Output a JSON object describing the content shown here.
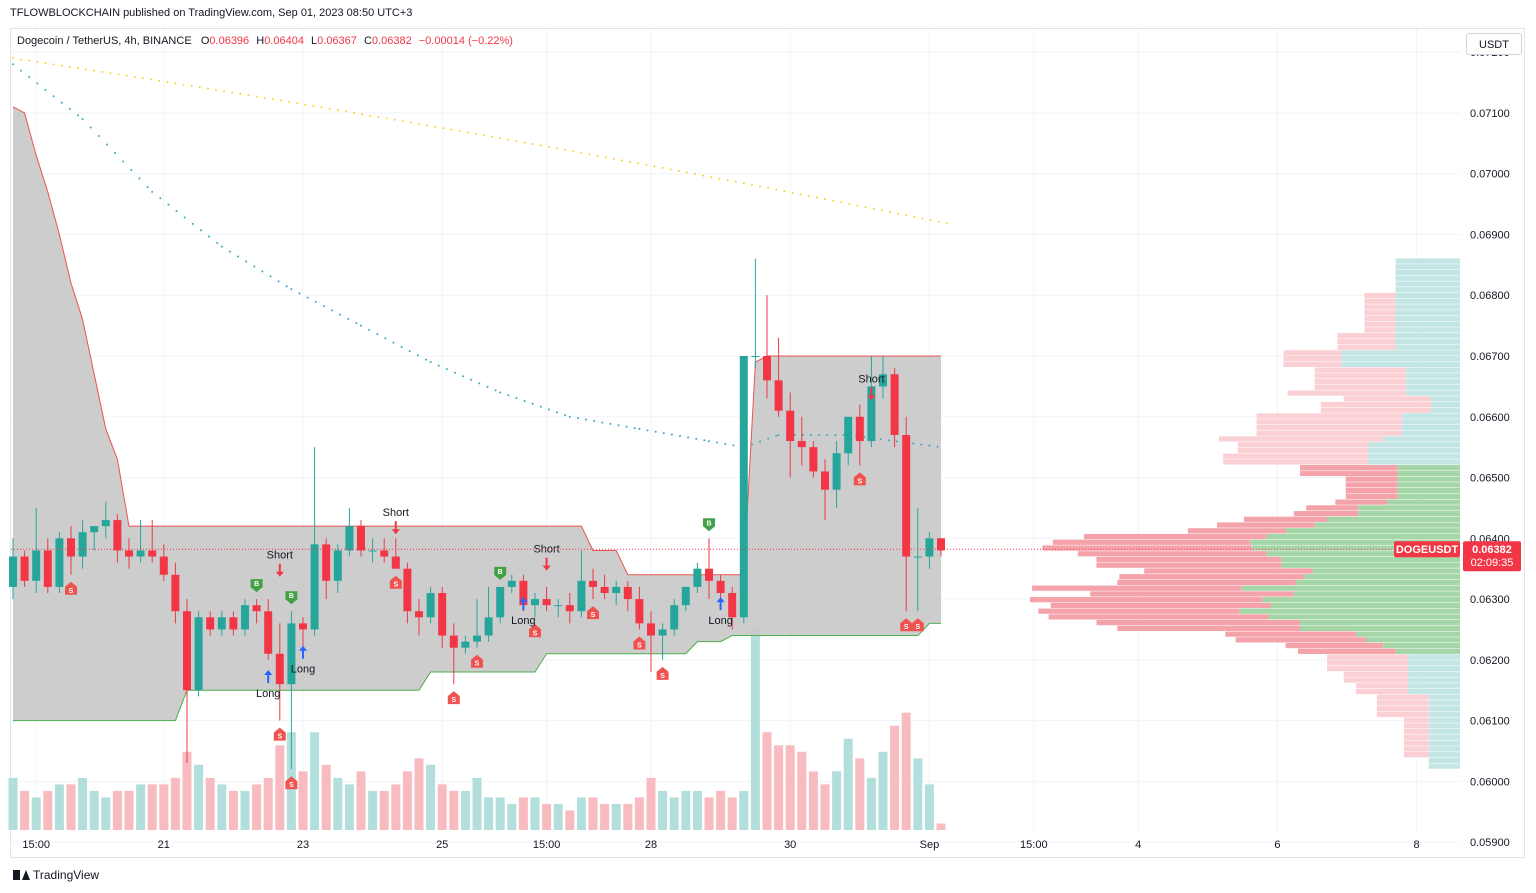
{
  "header": {
    "published": "TFLOWBLOCKCHAIN published on TradingView.com, Sep 01, 2023 08:50 UTC+3"
  },
  "legend": {
    "symbol": "Dogecoin / TetherUS, 4h, BINANCE",
    "open_label": "O",
    "open": "0.06396",
    "high_label": "H",
    "high": "0.06404",
    "low_label": "L",
    "low": "0.06367",
    "close_label": "C",
    "close": "0.06382",
    "change": "−0.00014 (−0.22%)"
  },
  "currency_button": "USDT",
  "brand": "TradingView",
  "colors": {
    "up": "#26a69a",
    "down": "#f23645",
    "band_fill": "#c8c8c8",
    "band_upper": "#ef5350",
    "band_lower": "#4caf50",
    "ema_slow": "#f5d327",
    "ema_fast": "#3aa8c0",
    "vol_up": "#b2dfdb",
    "vol_down": "#f8bbc0",
    "vp_up": "#a5d6a7",
    "vp_down": "#f4a3aa",
    "vp_up_light": "#c3e6e4",
    "vp_down_light": "#fbd0d4"
  },
  "chart_data": {
    "type": "candlestick",
    "symbol": "DOGEUSDT",
    "timeframe": "4h",
    "ylim": [
      0.0592,
      0.0722
    ],
    "y_ticks": [
      "0.07200",
      "0.07100",
      "0.07000",
      "0.06900",
      "0.06800",
      "0.06700",
      "0.06600",
      "0.06500",
      "0.06400",
      "0.06300",
      "0.06200",
      "0.06100",
      "0.06000",
      "0.05900"
    ],
    "x_ticks": [
      {
        "label": "15:00",
        "i": 2
      },
      {
        "label": "21",
        "i": 13
      },
      {
        "label": "23",
        "i": 25
      },
      {
        "label": "25",
        "i": 37
      },
      {
        "label": "15:00",
        "i": 46
      },
      {
        "label": "28",
        "i": 55
      },
      {
        "label": "30",
        "i": 67
      },
      {
        "label": "Sep",
        "i": 79
      },
      {
        "label": "15:00",
        "i": 88
      },
      {
        "label": "4",
        "i": 97
      },
      {
        "label": "6",
        "i": 109
      },
      {
        "label": "8",
        "i": 121
      }
    ],
    "last_price": "0.06382",
    "last_price_label": "DOGEUSDT",
    "countdown": "02:09:35",
    "candles": [
      [
        0.0632,
        0.064,
        0.063,
        0.0637
      ],
      [
        0.0637,
        0.0638,
        0.0632,
        0.0633
      ],
      [
        0.0633,
        0.0645,
        0.0631,
        0.0638
      ],
      [
        0.0638,
        0.064,
        0.0631,
        0.0632
      ],
      [
        0.0632,
        0.0641,
        0.0631,
        0.064
      ],
      [
        0.064,
        0.0642,
        0.0634,
        0.0637
      ],
      [
        0.0637,
        0.0643,
        0.0635,
        0.0641
      ],
      [
        0.0641,
        0.0642,
        0.0638,
        0.0642
      ],
      [
        0.0642,
        0.0646,
        0.064,
        0.0643
      ],
      [
        0.0643,
        0.0644,
        0.0636,
        0.0638
      ],
      [
        0.0638,
        0.064,
        0.0635,
        0.0637
      ],
      [
        0.0637,
        0.0643,
        0.0636,
        0.0638
      ],
      [
        0.0638,
        0.0643,
        0.0636,
        0.0637
      ],
      [
        0.0637,
        0.0639,
        0.0633,
        0.0634
      ],
      [
        0.0634,
        0.0636,
        0.0626,
        0.0628
      ],
      [
        0.0628,
        0.063,
        0.0603,
        0.0615
      ],
      [
        0.0615,
        0.0628,
        0.0614,
        0.0627
      ],
      [
        0.0627,
        0.0628,
        0.0624,
        0.0625
      ],
      [
        0.0625,
        0.0628,
        0.0624,
        0.0627
      ],
      [
        0.0627,
        0.0628,
        0.0624,
        0.0625
      ],
      [
        0.0625,
        0.063,
        0.0624,
        0.0629
      ],
      [
        0.0629,
        0.063,
        0.0626,
        0.0628
      ],
      [
        0.0628,
        0.063,
        0.062,
        0.0621
      ],
      [
        0.0621,
        0.0626,
        0.061,
        0.0616
      ],
      [
        0.0616,
        0.0628,
        0.0602,
        0.0626
      ],
      [
        0.0626,
        0.0627,
        0.0622,
        0.0625
      ],
      [
        0.0625,
        0.0655,
        0.0624,
        0.0639
      ],
      [
        0.0639,
        0.064,
        0.063,
        0.0633
      ],
      [
        0.0633,
        0.0639,
        0.0631,
        0.0638
      ],
      [
        0.0638,
        0.0645,
        0.0637,
        0.0642
      ],
      [
        0.0642,
        0.0643,
        0.0637,
        0.0638
      ],
      [
        0.0638,
        0.064,
        0.0636,
        0.0638
      ],
      [
        0.0638,
        0.064,
        0.0636,
        0.0637
      ],
      [
        0.0637,
        0.064,
        0.0635,
        0.0635
      ],
      [
        0.0635,
        0.0636,
        0.0626,
        0.0628
      ],
      [
        0.0628,
        0.063,
        0.0624,
        0.0627
      ],
      [
        0.0627,
        0.0632,
        0.0626,
        0.0631
      ],
      [
        0.0631,
        0.0632,
        0.0622,
        0.0624
      ],
      [
        0.0624,
        0.0626,
        0.0616,
        0.0622
      ],
      [
        0.0622,
        0.0624,
        0.0621,
        0.0623
      ],
      [
        0.0623,
        0.063,
        0.0622,
        0.0624
      ],
      [
        0.0624,
        0.0632,
        0.0623,
        0.0627
      ],
      [
        0.0627,
        0.0632,
        0.0626,
        0.0632
      ],
      [
        0.0632,
        0.0634,
        0.0631,
        0.0633
      ],
      [
        0.0633,
        0.0634,
        0.0628,
        0.0629
      ],
      [
        0.0629,
        0.0631,
        0.0627,
        0.063
      ],
      [
        0.063,
        0.0632,
        0.0628,
        0.0629
      ],
      [
        0.0629,
        0.063,
        0.0627,
        0.0629
      ],
      [
        0.0629,
        0.0631,
        0.0626,
        0.0628
      ],
      [
        0.0628,
        0.0638,
        0.0627,
        0.0633
      ],
      [
        0.0633,
        0.0635,
        0.063,
        0.0632
      ],
      [
        0.0632,
        0.0634,
        0.063,
        0.0631
      ],
      [
        0.0631,
        0.0633,
        0.0629,
        0.0632
      ],
      [
        0.0632,
        0.0633,
        0.0628,
        0.063
      ],
      [
        0.063,
        0.0632,
        0.0625,
        0.0626
      ],
      [
        0.0626,
        0.0628,
        0.0618,
        0.0624
      ],
      [
        0.0624,
        0.0626,
        0.062,
        0.0625
      ],
      [
        0.0625,
        0.063,
        0.0624,
        0.0629
      ],
      [
        0.0629,
        0.0632,
        0.0628,
        0.0632
      ],
      [
        0.0632,
        0.0636,
        0.0631,
        0.0635
      ],
      [
        0.0635,
        0.064,
        0.063,
        0.0633
      ],
      [
        0.0633,
        0.0634,
        0.0629,
        0.0631
      ],
      [
        0.0631,
        0.0632,
        0.0625,
        0.0627
      ],
      [
        0.0627,
        0.067,
        0.0626,
        0.067
      ],
      [
        0.067,
        0.0686,
        0.0668,
        0.067
      ],
      [
        0.067,
        0.068,
        0.0663,
        0.0666
      ],
      [
        0.0666,
        0.0673,
        0.066,
        0.0661
      ],
      [
        0.0661,
        0.0664,
        0.065,
        0.0656
      ],
      [
        0.0656,
        0.066,
        0.0652,
        0.0655
      ],
      [
        0.0655,
        0.0656,
        0.065,
        0.0651
      ],
      [
        0.0651,
        0.0653,
        0.0643,
        0.0648
      ],
      [
        0.0648,
        0.0656,
        0.0645,
        0.0654
      ],
      [
        0.0654,
        0.066,
        0.0652,
        0.066
      ],
      [
        0.066,
        0.0662,
        0.0652,
        0.0656
      ],
      [
        0.0656,
        0.067,
        0.0655,
        0.0665
      ],
      [
        0.0665,
        0.067,
        0.0663,
        0.0667
      ],
      [
        0.0667,
        0.0668,
        0.0655,
        0.0657
      ],
      [
        0.0657,
        0.066,
        0.0628,
        0.0637
      ],
      [
        0.0637,
        0.0645,
        0.0628,
        0.0637
      ],
      [
        0.0637,
        0.0641,
        0.0635,
        0.064
      ],
      [
        0.064,
        0.064,
        0.0637,
        0.0638
      ]
    ],
    "volume": [
      8,
      6,
      5,
      6,
      7,
      7,
      8,
      6,
      5,
      6,
      6,
      7,
      7,
      7,
      8,
      12,
      10,
      8,
      7,
      6,
      6,
      7,
      8,
      13,
      15,
      9,
      15,
      10,
      8,
      7,
      9,
      6,
      6,
      7,
      9,
      11,
      10,
      7,
      6,
      6,
      8,
      5,
      5,
      4,
      5,
      5,
      4,
      4,
      3,
      5,
      5,
      4,
      4,
      4,
      5,
      8,
      6,
      5,
      6,
      6,
      5,
      6,
      5,
      6,
      31,
      15,
      13,
      13,
      12,
      9,
      7,
      9,
      14,
      11,
      8,
      12,
      16,
      18,
      11,
      7,
      1
    ],
    "band_upper": [
      0.0711,
      0.071,
      0.0703,
      0.0697,
      0.069,
      0.0682,
      0.0676,
      0.0667,
      0.0658,
      0.0653,
      0.0642,
      0.0642,
      0.0642,
      0.0642,
      0.0642,
      0.0642,
      0.0642,
      0.0642,
      0.0642,
      0.0642,
      0.0642,
      0.0642,
      0.0642,
      0.0642,
      0.0642,
      0.0642,
      0.0642,
      0.0642,
      0.0642,
      0.0642,
      0.0642,
      0.0642,
      0.0642,
      0.0642,
      0.0642,
      0.0642,
      0.0642,
      0.0642,
      0.0642,
      0.0642,
      0.0642,
      0.0642,
      0.0642,
      0.0642,
      0.0642,
      0.0642,
      0.0642,
      0.0642,
      0.0642,
      0.0642,
      0.0638,
      0.0638,
      0.0638,
      0.0634,
      0.0634,
      0.0634,
      0.0634,
      0.0634,
      0.0634,
      0.0634,
      0.0634,
      0.0634,
      0.0634,
      0.0634,
      0.0669,
      0.067,
      0.067,
      0.067,
      0.067,
      0.067,
      0.067,
      0.067,
      0.067,
      0.067,
      0.067,
      0.067,
      0.067,
      0.067,
      0.067,
      0.067,
      0.067
    ],
    "band_lower": [
      0.061,
      0.061,
      0.061,
      0.061,
      0.061,
      0.061,
      0.061,
      0.061,
      0.061,
      0.061,
      0.061,
      0.061,
      0.061,
      0.061,
      0.061,
      0.0615,
      0.0615,
      0.0615,
      0.0615,
      0.0615,
      0.0615,
      0.0615,
      0.0615,
      0.0615,
      0.0615,
      0.0615,
      0.0615,
      0.0615,
      0.0615,
      0.0615,
      0.0615,
      0.0615,
      0.0615,
      0.0615,
      0.0615,
      0.0615,
      0.0618,
      0.0618,
      0.0618,
      0.0618,
      0.0618,
      0.0618,
      0.0618,
      0.0618,
      0.0618,
      0.0618,
      0.0621,
      0.0621,
      0.0621,
      0.0621,
      0.0621,
      0.0621,
      0.0621,
      0.0621,
      0.0621,
      0.0621,
      0.0621,
      0.0621,
      0.0621,
      0.0623,
      0.0623,
      0.0623,
      0.0624,
      0.0624,
      0.0624,
      0.0624,
      0.0624,
      0.0624,
      0.0624,
      0.0624,
      0.0624,
      0.0624,
      0.0624,
      0.0624,
      0.0624,
      0.0624,
      0.0624,
      0.0624,
      0.0624,
      0.0626,
      0.0626
    ],
    "ema_slow": {
      "start": 0.0719,
      "end": 0.0692
    },
    "ema_fast": [
      [
        0,
        0.0718
      ],
      [
        6,
        0.0709
      ],
      [
        12,
        0.0697
      ],
      [
        18,
        0.0688
      ],
      [
        24,
        0.0681
      ],
      [
        30,
        0.0675
      ],
      [
        36,
        0.0669
      ],
      [
        42,
        0.0664
      ],
      [
        48,
        0.066
      ],
      [
        54,
        0.0658
      ],
      [
        60,
        0.0656
      ],
      [
        63,
        0.0655
      ],
      [
        66,
        0.0657
      ],
      [
        72,
        0.0657
      ],
      [
        80,
        0.0655
      ]
    ],
    "signals": [
      {
        "i": 5,
        "type": "S"
      },
      {
        "i": 21,
        "type": "B"
      },
      {
        "i": 24,
        "type": "B"
      },
      {
        "i": 23,
        "type": "S"
      },
      {
        "i": 24,
        "type": "S"
      },
      {
        "i": 33,
        "type": "S"
      },
      {
        "i": 38,
        "type": "S"
      },
      {
        "i": 40,
        "type": "S"
      },
      {
        "i": 42,
        "type": "B"
      },
      {
        "i": 45,
        "type": "S"
      },
      {
        "i": 50,
        "type": "S"
      },
      {
        "i": 54,
        "type": "S"
      },
      {
        "i": 56,
        "type": "S"
      },
      {
        "i": 60,
        "type": "B"
      },
      {
        "i": 73,
        "type": "S"
      },
      {
        "i": 77,
        "type": "S"
      },
      {
        "i": 78,
        "type": "S"
      }
    ],
    "arrows": [
      {
        "i": 23,
        "dir": "down",
        "label": "Short",
        "price": 0.06345
      },
      {
        "i": 22,
        "dir": "up",
        "label": "Long",
        "price": 0.06175
      },
      {
        "i": 25,
        "dir": "up",
        "label": "Long",
        "price": 0.06215
      },
      {
        "i": 33,
        "dir": "down",
        "label": "Short",
        "price": 0.06415
      },
      {
        "i": 46,
        "dir": "down",
        "label": "Short",
        "price": 0.06355
      },
      {
        "i": 44,
        "dir": "up",
        "label": "Long",
        "price": 0.06295
      },
      {
        "i": 61,
        "dir": "up",
        "label": "Long",
        "price": 0.06295
      },
      {
        "i": 74,
        "dir": "down",
        "label": "Short",
        "price": 0.06635
      }
    ]
  }
}
